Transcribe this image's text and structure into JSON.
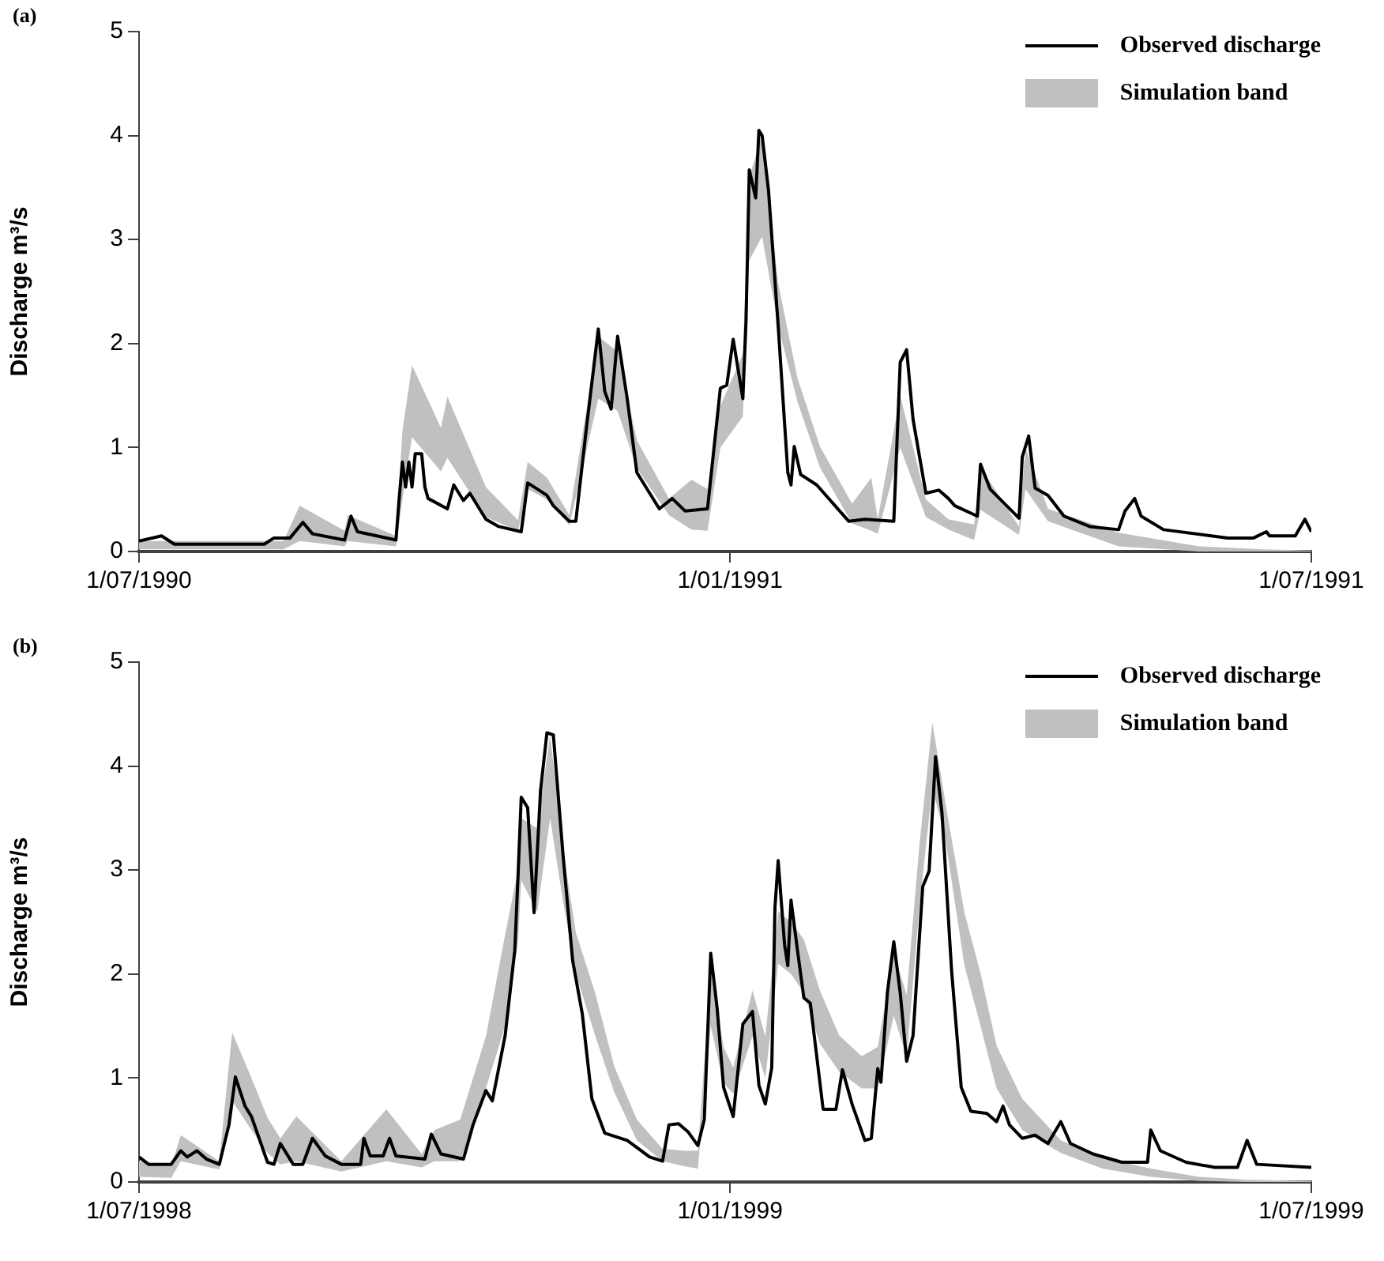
{
  "chart_data": [
    {
      "type": "line",
      "title": "(a)",
      "ylabel": "Discharge m³/s",
      "legend": "top right",
      "ylim": [
        0,
        5
      ],
      "yticks": [
        0,
        1,
        2,
        3,
        4,
        5
      ],
      "xlim": [
        "1990-07-01",
        "1991-07-01"
      ],
      "xticks": [
        {
          "value": "1990-07-01",
          "label": "1/07/1990"
        },
        {
          "value": "1991-01-01",
          "label": "1/01/1991"
        },
        {
          "value": "1991-07-01",
          "label": "1/07/1991"
        }
      ],
      "series": [
        {
          "name": "Observed discharge",
          "color": "#000000",
          "x": [
            "1990-07-01",
            "1990-07-08",
            "1990-07-12",
            "1990-08-09",
            "1990-08-12",
            "1990-08-17",
            "1990-08-21",
            "1990-08-24",
            "1990-09-03",
            "1990-09-05",
            "1990-09-07",
            "1990-09-19",
            "1990-09-20",
            "1990-09-21",
            "1990-09-22",
            "1990-09-23",
            "1990-09-24",
            "1990-09-25",
            "1990-09-27",
            "1990-09-28",
            "1990-09-29",
            "1990-10-05",
            "1990-10-07",
            "1990-10-10",
            "1990-10-12",
            "1990-10-17",
            "1990-10-21",
            "1990-10-28",
            "1990-10-30",
            "1990-11-05",
            "1990-11-07",
            "1990-11-12",
            "1990-11-14",
            "1990-11-17",
            "1990-11-21",
            "1990-11-23",
            "1990-11-25",
            "1990-11-27",
            "1990-11-30",
            "1990-12-03",
            "1990-12-10",
            "1990-12-14",
            "1990-12-18",
            "1990-12-25",
            "1990-12-29",
            "1990-12-31",
            "1991-01-02",
            "1991-01-05",
            "1991-01-06",
            "1991-01-07",
            "1991-01-09",
            "1991-01-10",
            "1991-01-11",
            "1991-01-13",
            "1991-01-16",
            "1991-01-19",
            "1991-01-20",
            "1991-01-21",
            "1991-01-23",
            "1991-01-28",
            "1991-02-07",
            "1991-02-12",
            "1991-02-21",
            "1991-02-23",
            "1991-02-25",
            "1991-02-27",
            "1991-03-03",
            "1991-03-07",
            "1991-03-10",
            "1991-03-12",
            "1991-03-19",
            "1991-03-20",
            "1991-03-23",
            "1991-04-01",
            "1991-04-02",
            "1991-04-04",
            "1991-04-06",
            "1991-04-10",
            "1991-04-15",
            "1991-04-23",
            "1991-05-02",
            "1991-05-04",
            "1991-05-07",
            "1991-05-09",
            "1991-05-16",
            "1991-06-05",
            "1991-06-13",
            "1991-06-17",
            "1991-06-18",
            "1991-06-26",
            "1991-06-29",
            "1991-07-01"
          ],
          "values": [
            0.1,
            0.15,
            0.07,
            0.07,
            0.13,
            0.13,
            0.28,
            0.17,
            0.11,
            0.34,
            0.19,
            0.11,
            0.51,
            0.86,
            0.62,
            0.86,
            0.62,
            0.94,
            0.94,
            0.62,
            0.51,
            0.41,
            0.64,
            0.49,
            0.56,
            0.31,
            0.24,
            0.19,
            0.66,
            0.54,
            0.44,
            0.29,
            0.29,
            1.11,
            2.14,
            1.54,
            1.37,
            2.07,
            1.47,
            0.76,
            0.41,
            0.51,
            0.39,
            0.41,
            1.57,
            1.6,
            2.04,
            1.47,
            2.22,
            3.67,
            3.4,
            4.05,
            4.0,
            3.47,
            2.17,
            0.76,
            0.64,
            1.01,
            0.74,
            0.64,
            0.29,
            0.31,
            0.29,
            1.82,
            1.94,
            1.27,
            0.56,
            0.59,
            0.51,
            0.44,
            0.34,
            0.84,
            0.6,
            0.32,
            0.91,
            1.11,
            0.61,
            0.54,
            0.34,
            0.24,
            0.21,
            0.39,
            0.51,
            0.34,
            0.21,
            0.13,
            0.13,
            0.19,
            0.15,
            0.15,
            0.31,
            0.19
          ]
        },
        {
          "name": "Simulation band",
          "type": "line",
          "color": "#c0c0c0",
          "x": [
            "1990-07-01",
            "1990-08-15",
            "1990-08-20",
            "1990-09-03",
            "1990-09-04",
            "1990-09-19",
            "1990-09-21",
            "1990-09-24",
            "1990-10-03",
            "1990-10-05",
            "1990-10-17",
            "1990-10-27",
            "1990-10-30",
            "1990-11-05",
            "1990-11-12",
            "1990-11-21",
            "1990-11-27",
            "1990-12-03",
            "1990-12-13",
            "1990-12-20",
            "1990-12-25",
            "1990-12-29",
            "1991-01-05",
            "1991-01-07",
            "1991-01-11",
            "1991-01-16",
            "1991-01-22",
            "1991-01-29",
            "1991-02-08",
            "1991-02-14",
            "1991-02-16",
            "1991-02-23",
            "1991-03-03",
            "1991-03-10",
            "1991-03-18",
            "1991-03-20",
            "1991-04-01",
            "1991-04-03",
            "1991-04-10",
            "1991-05-02",
            "1991-05-27",
            "1991-06-16",
            "1991-07-01"
          ],
          "lower": [
            0.02,
            0.02,
            0.1,
            0.05,
            0.1,
            0.05,
            0.5,
            1.1,
            0.77,
            0.9,
            0.33,
            0.2,
            0.6,
            0.5,
            0.25,
            1.47,
            1.35,
            0.8,
            0.35,
            0.21,
            0.2,
            1.0,
            1.3,
            2.8,
            3.03,
            2.17,
            1.44,
            0.81,
            0.27,
            0.2,
            0.17,
            1.0,
            0.33,
            0.21,
            0.11,
            0.4,
            0.16,
            0.6,
            0.29,
            0.05,
            0,
            0,
            0
          ],
          "values": [
            null,
            null,
            null,
            null,
            null,
            null,
            null,
            null,
            null,
            null,
            null,
            null,
            null,
            null,
            null,
            null,
            null,
            null,
            null,
            null,
            null,
            null,
            null,
            null,
            null,
            null,
            null,
            null,
            null,
            null,
            null,
            null,
            null,
            null,
            null,
            null,
            null,
            null,
            null,
            null,
            null,
            null,
            null
          ],
          "upper": [
            0.1,
            0.1,
            0.44,
            0.2,
            0.35,
            0.15,
            1.16,
            1.79,
            1.19,
            1.49,
            0.62,
            0.3,
            0.86,
            0.71,
            0.35,
            2.07,
            1.92,
            1.07,
            0.51,
            0.69,
            0.6,
            1.4,
            1.9,
            3.6,
            4.0,
            2.58,
            1.67,
            1.01,
            0.46,
            0.71,
            0.31,
            1.5,
            0.5,
            0.31,
            0.26,
            0.81,
            0.24,
            1.0,
            0.41,
            0.18,
            0.05,
            0.02,
            0.01
          ]
        }
      ]
    },
    {
      "type": "line",
      "title": "(b)",
      "ylabel": "Discharge m³/s",
      "legend": "top right",
      "ylim": [
        0,
        5
      ],
      "yticks": [
        0,
        1,
        2,
        3,
        4,
        5
      ],
      "xlim": [
        "1998-07-01",
        "1999-07-01"
      ],
      "xticks": [
        {
          "value": "1998-07-01",
          "label": "1/07/1998"
        },
        {
          "value": "1999-01-01",
          "label": "1/01/1999"
        },
        {
          "value": "1999-07-01",
          "label": "1/07/1999"
        }
      ],
      "series": [
        {
          "name": "Observed discharge",
          "color": "#000000",
          "x": [
            "1998-07-01",
            "1998-07-04",
            "1998-07-11",
            "1998-07-14",
            "1998-07-16",
            "1998-07-19",
            "1998-07-22",
            "1998-07-26",
            "1998-07-29",
            "1998-07-31",
            "1998-08-03",
            "1998-08-05",
            "1998-08-10",
            "1998-08-12",
            "1998-08-14",
            "1998-08-18",
            "1998-08-21",
            "1998-08-24",
            "1998-08-28",
            "1998-09-02",
            "1998-09-08",
            "1998-09-09",
            "1998-09-11",
            "1998-09-15",
            "1998-09-17",
            "1998-09-19",
            "1998-09-28",
            "1998-09-30",
            "1998-10-03",
            "1998-10-10",
            "1998-10-13",
            "1998-10-17",
            "1998-10-19",
            "1998-10-23",
            "1998-10-26",
            "1998-10-27",
            "1998-10-28",
            "1998-10-30",
            "1998-11-01",
            "1998-11-03",
            "1998-11-05",
            "1998-11-07",
            "1998-11-10",
            "1998-11-13",
            "1998-11-16",
            "1998-11-19",
            "1998-11-23",
            "1998-11-30",
            "1998-12-07",
            "1998-12-11",
            "1998-12-13",
            "1998-12-16",
            "1998-12-19",
            "1998-12-22",
            "1998-12-24",
            "1998-12-26",
            "1998-12-28",
            "1998-12-30",
            "1999-01-02",
            "1999-01-05",
            "1999-01-08",
            "1999-01-10",
            "1999-01-12",
            "1999-01-14",
            "1999-01-15",
            "1999-01-16",
            "1999-01-18",
            "1999-01-19",
            "1999-01-20",
            "1999-01-22",
            "1999-01-24",
            "1999-01-26",
            "1999-01-30",
            "1999-02-03",
            "1999-02-05",
            "1999-02-08",
            "1999-02-12",
            "1999-02-14",
            "1999-02-16",
            "1999-02-17",
            "1999-02-19",
            "1999-02-21",
            "1999-02-23",
            "1999-02-25",
            "1999-02-27",
            "1999-03-02",
            "1999-03-04",
            "1999-03-06",
            "1999-03-08",
            "1999-03-11",
            "1999-03-14",
            "1999-03-17",
            "1999-03-22",
            "1999-03-25",
            "1999-03-27",
            "1999-03-29",
            "1999-04-02",
            "1999-04-06",
            "1999-04-10",
            "1999-04-14",
            "1999-04-17",
            "1999-04-24",
            "1999-05-03",
            "1999-05-11",
            "1999-05-12",
            "1999-05-15",
            "1999-05-23",
            "1999-06-01",
            "1999-06-08",
            "1999-06-11",
            "1999-06-14",
            "1999-07-01"
          ],
          "values": [
            0.24,
            0.17,
            0.17,
            0.3,
            0.24,
            0.3,
            0.22,
            0.17,
            0.55,
            1.01,
            0.73,
            0.63,
            0.19,
            0.17,
            0.37,
            0.17,
            0.17,
            0.42,
            0.25,
            0.17,
            0.17,
            0.42,
            0.25,
            0.25,
            0.42,
            0.25,
            0.22,
            0.46,
            0.27,
            0.22,
            0.55,
            0.88,
            0.78,
            1.41,
            2.23,
            2.94,
            3.7,
            3.6,
            2.59,
            3.76,
            4.32,
            4.3,
            3.15,
            2.13,
            1.62,
            0.8,
            0.47,
            0.4,
            0.24,
            0.2,
            0.55,
            0.56,
            0.48,
            0.35,
            0.6,
            2.2,
            1.67,
            0.91,
            0.63,
            1.52,
            1.64,
            0.93,
            0.75,
            1.1,
            2.64,
            3.09,
            2.28,
            2.08,
            2.71,
            2.23,
            1.77,
            1.72,
            0.7,
            0.7,
            1.08,
            0.75,
            0.4,
            0.42,
            1.09,
            0.96,
            1.82,
            2.31,
            1.82,
            1.16,
            1.41,
            2.84,
            2.99,
            4.09,
            3.55,
            2.03,
            0.91,
            0.68,
            0.66,
            0.58,
            0.73,
            0.55,
            0.42,
            0.45,
            0.37,
            0.58,
            0.37,
            0.27,
            0.19,
            0.19,
            0.5,
            0.3,
            0.19,
            0.14,
            0.14,
            0.4,
            0.17,
            0.14
          ]
        },
        {
          "name": "Simulation band",
          "type": "line",
          "color": "#c0c0c0",
          "x": [
            "1998-07-01",
            "1998-07-11",
            "1998-07-14",
            "1998-07-26",
            "1998-07-30",
            "1998-08-05",
            "1998-08-10",
            "1998-08-14",
            "1998-08-19",
            "1998-09-02",
            "1998-09-09",
            "1998-09-16",
            "1998-09-27",
            "1998-10-01",
            "1998-10-09",
            "1998-10-17",
            "1998-10-23",
            "1998-10-27",
            "1998-10-28",
            "1998-11-02",
            "1998-11-06",
            "1998-11-10",
            "1998-11-14",
            "1998-11-20",
            "1998-11-26",
            "1998-12-03",
            "1998-12-11",
            "1998-12-18",
            "1998-12-22",
            "1998-12-26",
            "1998-12-30",
            "1999-01-02",
            "1999-01-08",
            "1999-01-12",
            "1999-01-16",
            "1999-01-20",
            "1999-01-24",
            "1999-01-29",
            "1999-02-04",
            "1999-02-11",
            "1999-02-16",
            "1999-02-21",
            "1999-02-25",
            "1999-03-01",
            "1999-03-05",
            "1999-03-09",
            "1999-03-15",
            "1999-03-20",
            "1999-03-25",
            "1999-04-02",
            "1999-04-14",
            "1999-04-27",
            "1999-05-12",
            "1999-05-27",
            "1999-06-11",
            "1999-07-01"
          ],
          "lower": [
            0.05,
            0.04,
            0.2,
            0.12,
            0.78,
            0.5,
            0.28,
            0.17,
            0.2,
            0.1,
            0.15,
            0.2,
            0.14,
            0.2,
            0.2,
            0.9,
            1.5,
            2.3,
            2.9,
            2.6,
            3.5,
            2.7,
            2.0,
            1.41,
            0.86,
            0.4,
            0.2,
            0.15,
            0.13,
            1.5,
            0.95,
            0.85,
            1.4,
            1.0,
            2.1,
            2.0,
            1.82,
            1.33,
            1.06,
            0.9,
            0.9,
            1.6,
            1.2,
            2.66,
            3.79,
            3.31,
            2.08,
            1.5,
            0.9,
            0.5,
            0.28,
            0.13,
            0.05,
            0.01,
            0,
            0
          ],
          "values": [
            null,
            null,
            null,
            null,
            null,
            null,
            null,
            null,
            null,
            null,
            null,
            null,
            null,
            null,
            null,
            null,
            null,
            null,
            null,
            null,
            null,
            null,
            null,
            null,
            null,
            null,
            null,
            null,
            null,
            null,
            null,
            null,
            null,
            null,
            null,
            null,
            null,
            null,
            null,
            null,
            null,
            null,
            null,
            null,
            null,
            null,
            null,
            null,
            null,
            null,
            null,
            null,
            null,
            null,
            null,
            null
          ],
          "upper": [
            0.2,
            0.15,
            0.45,
            0.2,
            1.44,
            1.0,
            0.62,
            0.42,
            0.63,
            0.2,
            0.45,
            0.7,
            0.27,
            0.5,
            0.6,
            1.4,
            2.38,
            3.0,
            3.5,
            3.4,
            4.3,
            3.2,
            2.4,
            1.82,
            1.11,
            0.6,
            0.32,
            0.3,
            0.3,
            2.0,
            1.3,
            1.1,
            1.84,
            1.4,
            2.6,
            2.5,
            2.33,
            1.84,
            1.41,
            1.21,
            1.3,
            2.2,
            1.8,
            3.25,
            4.42,
            3.66,
            2.59,
            2.01,
            1.31,
            0.8,
            0.4,
            0.23,
            0.13,
            0.05,
            0.02,
            0.01
          ]
        }
      ]
    }
  ]
}
